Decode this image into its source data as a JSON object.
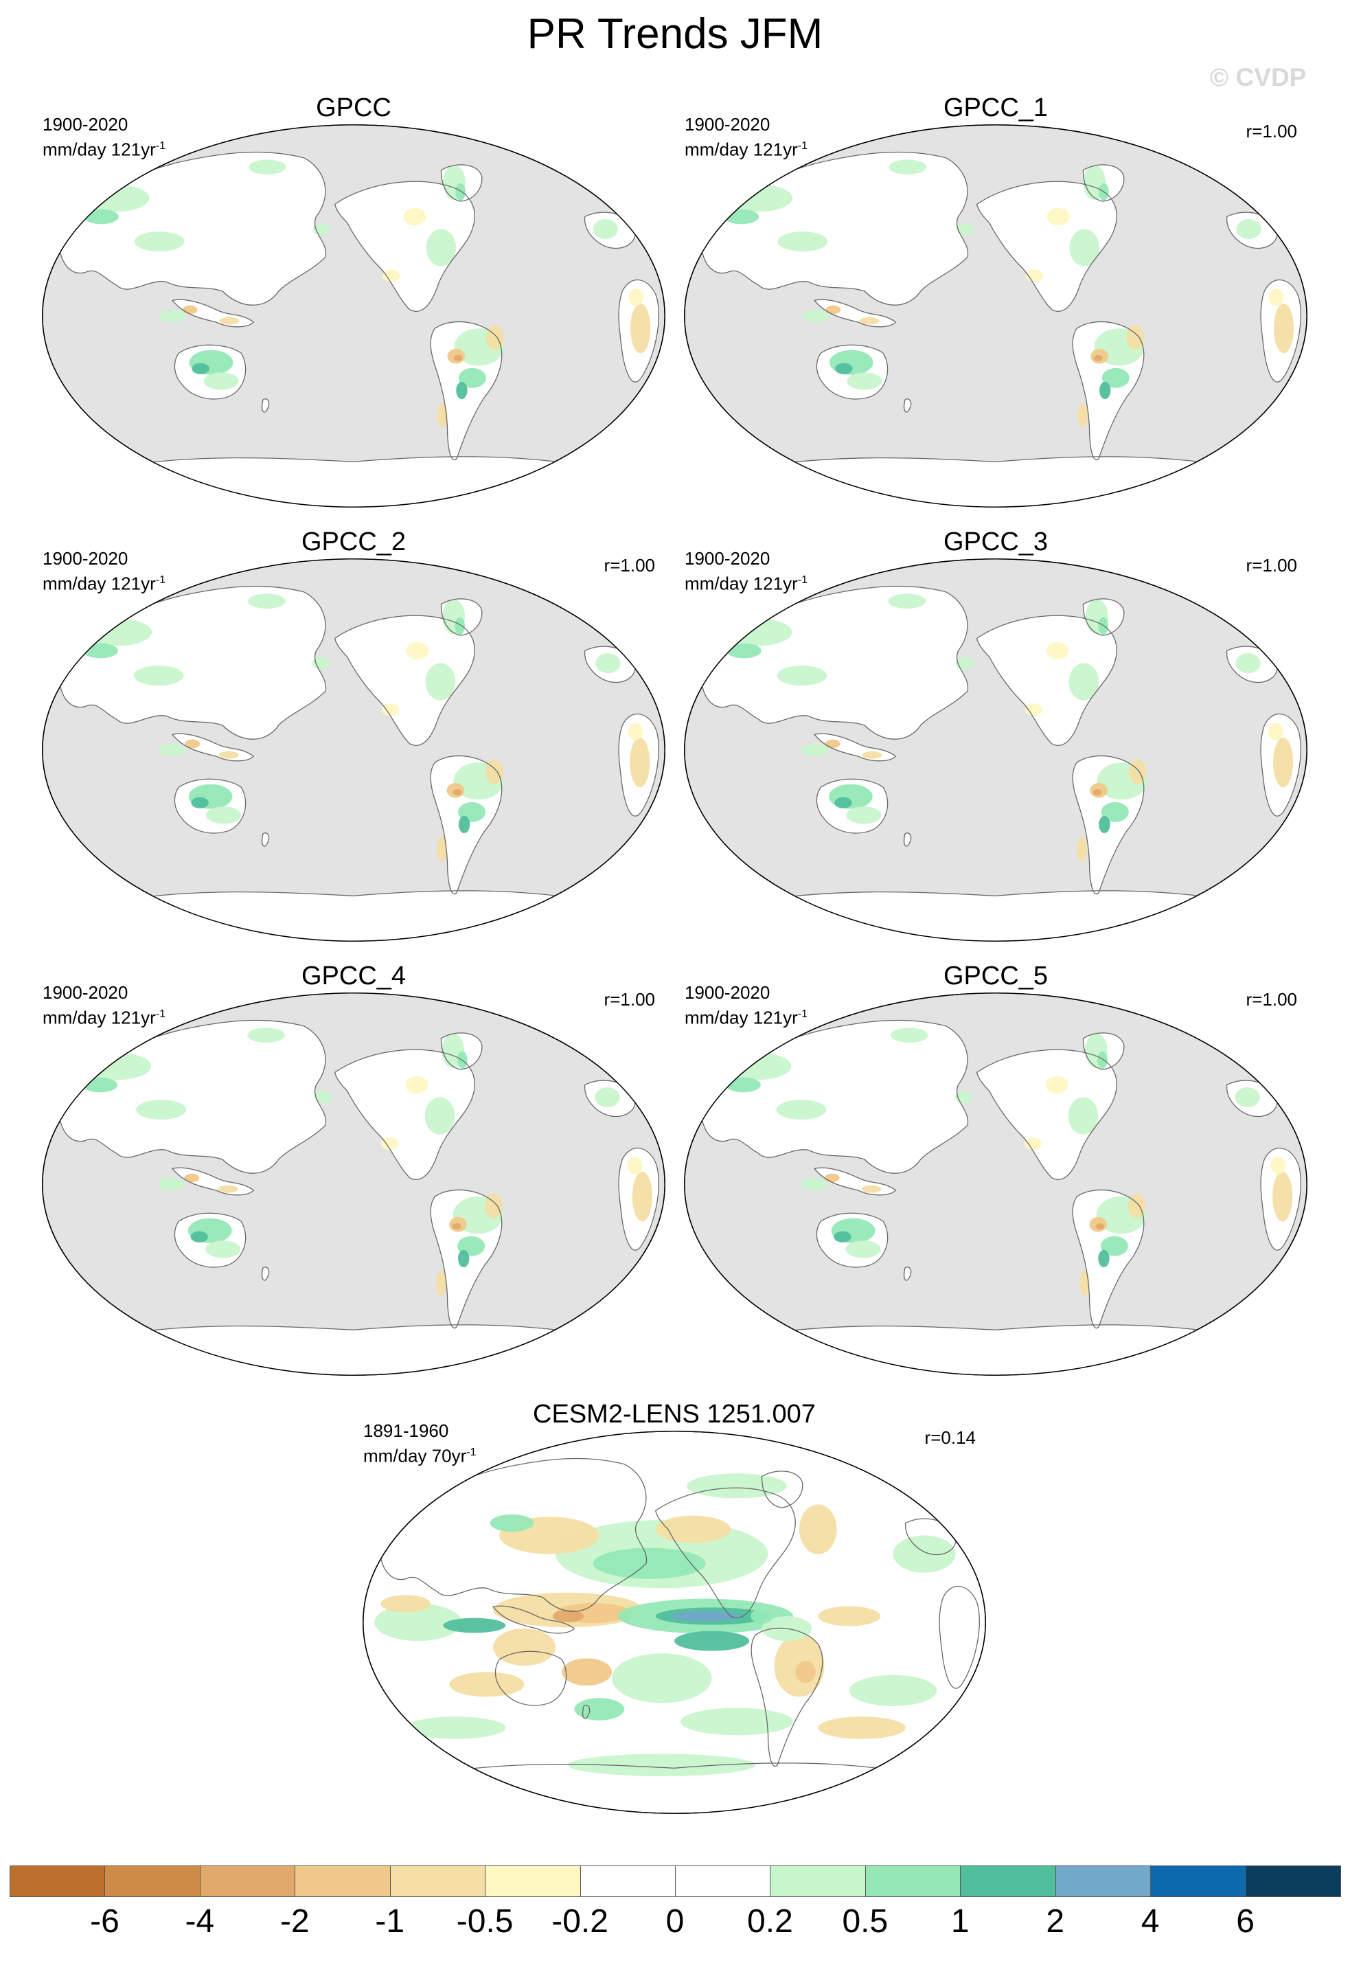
{
  "title": "PR Trends JFM",
  "watermark": "© CVDP",
  "panels": [
    {
      "title": "GPCC",
      "period": "1900-2020",
      "units": "mm/day 121yr",
      "units_exp": "-1",
      "corr": "",
      "style": "obs"
    },
    {
      "title": "GPCC_1",
      "period": "1900-2020",
      "units": "mm/day 121yr",
      "units_exp": "-1",
      "corr": "r=1.00",
      "style": "obs"
    },
    {
      "title": "GPCC_2",
      "period": "1900-2020",
      "units": "mm/day 121yr",
      "units_exp": "-1",
      "corr": "r=1.00",
      "style": "obs"
    },
    {
      "title": "GPCC_3",
      "period": "1900-2020",
      "units": "mm/day 121yr",
      "units_exp": "-1",
      "corr": "r=1.00",
      "style": "obs"
    },
    {
      "title": "GPCC_4",
      "period": "1900-2020",
      "units": "mm/day 121yr",
      "units_exp": "-1",
      "corr": "r=1.00",
      "style": "obs"
    },
    {
      "title": "GPCC_5",
      "period": "1900-2020",
      "units": "mm/day 121yr",
      "units_exp": "-1",
      "corr": "r=1.00",
      "style": "obs"
    },
    {
      "title": "CESM2-LENS 1251.007",
      "period": "1891-1960",
      "units": "mm/day 70yr",
      "units_exp": "-1",
      "corr": "r=0.14",
      "style": "model"
    }
  ],
  "colorbar": {
    "colors": [
      "#bd6f2e",
      "#cf8c48",
      "#e2aa6a",
      "#f0c88a",
      "#f4dea4",
      "#fff7c2",
      "#ffffff",
      "#ffffff",
      "#c8f6cc",
      "#95e8b6",
      "#52bf9c",
      "#72a8c9",
      "#0a6aad",
      "#083d5c"
    ],
    "labels": [
      "-6",
      "-4",
      "-2",
      "-1",
      "-0.5",
      "-0.2",
      "0",
      "0.2",
      "0.5",
      "1",
      "2",
      "4",
      "6"
    ]
  },
  "map_colors": {
    "ocean_missing": "#e3e3e3",
    "land": "#ffffff",
    "coast": "#666666"
  }
}
